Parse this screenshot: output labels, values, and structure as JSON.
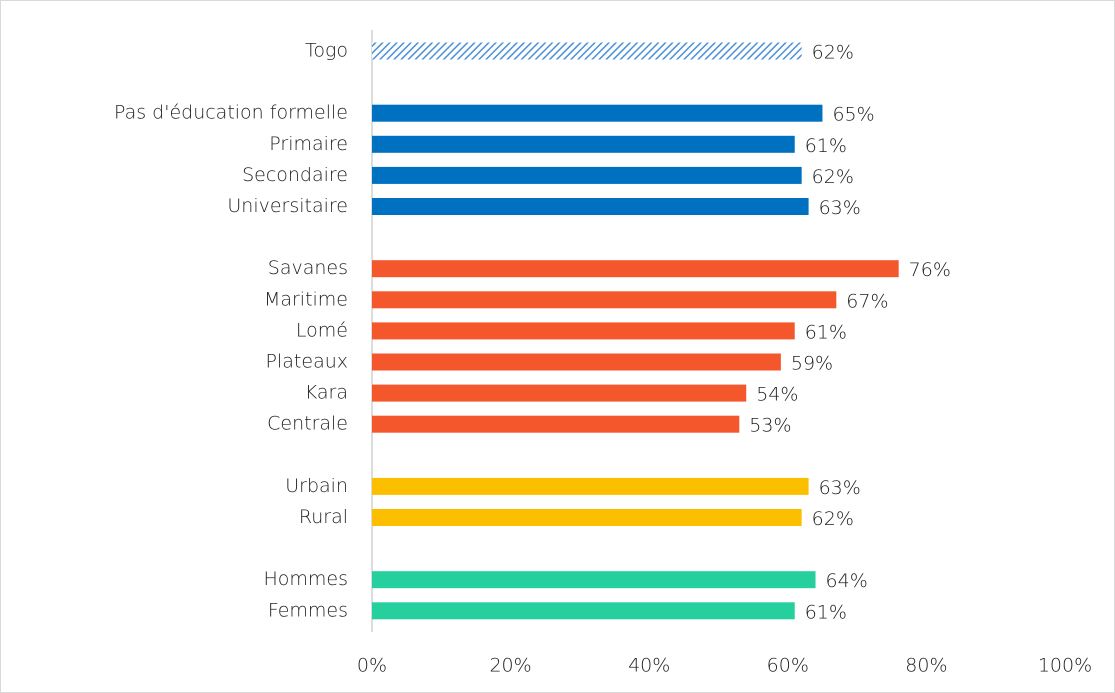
{
  "chart_data": {
    "type": "hbar",
    "categories": [
      "Togo",
      null,
      "Pas d'éducation formelle",
      "Primaire",
      "Secondaire",
      "Universitaire",
      null,
      "Savanes",
      "Maritime",
      "Lomé",
      "Plateaux",
      "Kara",
      "Centrale",
      null,
      "Urbain",
      "Rural",
      null,
      "Hommes",
      "Femmes"
    ],
    "values": [
      62,
      null,
      65,
      61,
      62,
      63,
      null,
      76,
      67,
      61,
      59,
      54,
      53,
      null,
      63,
      62,
      null,
      64,
      61
    ],
    "value_labels": [
      "62%",
      null,
      "65%",
      "61%",
      "62%",
      "63%",
      null,
      "76%",
      "67%",
      "61%",
      "59%",
      "54%",
      "53%",
      null,
      "63%",
      "62%",
      null,
      "64%",
      "61%"
    ],
    "colors": [
      "#4a90d9",
      null,
      "#0070c0",
      "#0070c0",
      "#0070c0",
      "#0070c0",
      null,
      "#f4572c",
      "#f4572c",
      "#f4572c",
      "#f4572c",
      "#f4572c",
      "#f4572c",
      null,
      "#fbbf00",
      "#fbbf00",
      null,
      "#26cf9e",
      "#26cf9e"
    ],
    "hatched": [
      true,
      null,
      false,
      false,
      false,
      false,
      null,
      false,
      false,
      false,
      false,
      false,
      false,
      null,
      false,
      false,
      null,
      false,
      false
    ],
    "xlim": [
      0,
      100
    ],
    "xticks": [
      {
        "value": 0,
        "label": "0%"
      },
      {
        "value": 20,
        "label": "20%"
      },
      {
        "value": 40,
        "label": "40%"
      },
      {
        "value": 60,
        "label": "60%"
      },
      {
        "value": 80,
        "label": "80%"
      },
      {
        "value": 100,
        "label": "100%"
      }
    ],
    "grid": false
  }
}
